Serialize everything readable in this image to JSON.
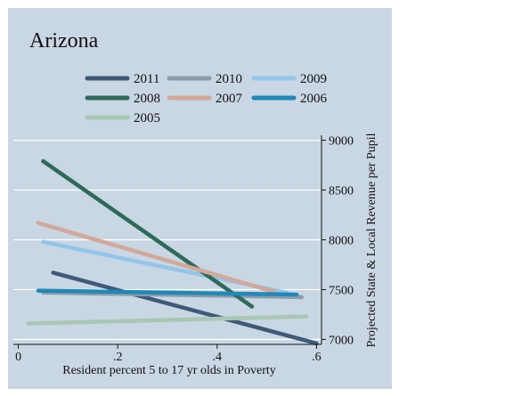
{
  "chart_data": {
    "type": "line",
    "title": "Arizona",
    "xlabel": "Resident percent 5 to 17 yr olds in Poverty",
    "ylabel": "Projected State & Local Revenue per Pupil",
    "xlim": [
      -0.01,
      0.61
    ],
    "ylim": [
      6950,
      9050
    ],
    "x_ticks": [
      0,
      0.2,
      0.4,
      0.6
    ],
    "x_tick_labels": [
      "0",
      ".2",
      ".4",
      ".6"
    ],
    "y_ticks": [
      7000,
      7500,
      8000,
      8500,
      9000
    ],
    "y_tick_labels": [
      "7000",
      "7500",
      "8000",
      "8500",
      "9000"
    ],
    "y_axis_side": "right",
    "grid": "horizontal",
    "legend_position": "top",
    "background": "#c9d6e3",
    "series": [
      {
        "name": "2011",
        "color": "#3e5a78",
        "x": [
          0.07,
          0.6
        ],
        "y": [
          7670,
          6960
        ]
      },
      {
        "name": "2010",
        "color": "#8d9bab",
        "x": [
          0.05,
          0.57
        ],
        "y": [
          7470,
          7425
        ]
      },
      {
        "name": "2009",
        "color": "#92c6ea",
        "x": [
          0.05,
          0.54
        ],
        "y": [
          7980,
          7470
        ]
      },
      {
        "name": "2008",
        "color": "#2e6a5a",
        "x": [
          0.05,
          0.47
        ],
        "y": [
          8790,
          7330
        ]
      },
      {
        "name": "2007",
        "color": "#d2a89a",
        "x": [
          0.04,
          0.52
        ],
        "y": [
          8170,
          7470
        ]
      },
      {
        "name": "2006",
        "color": "#1f88b8",
        "x": [
          0.04,
          0.56
        ],
        "y": [
          7490,
          7450
        ]
      },
      {
        "name": "2005",
        "color": "#a9c6b2",
        "x": [
          0.02,
          0.58
        ],
        "y": [
          7160,
          7230
        ]
      }
    ]
  }
}
